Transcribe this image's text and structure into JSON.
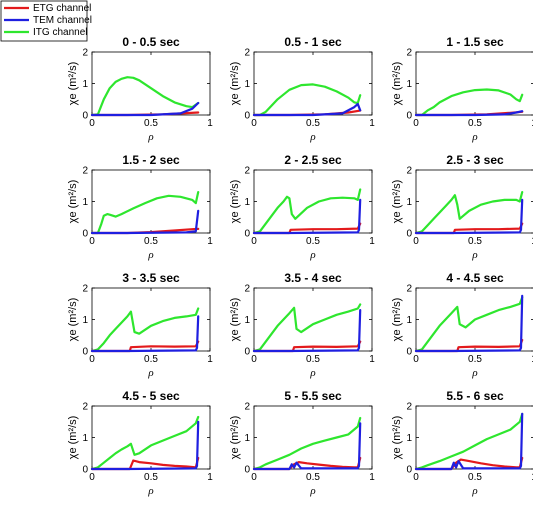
{
  "chart_data": {
    "type": "line",
    "layout": "4x3 subplot grid",
    "legend": {
      "placement": "top-left",
      "entries": [
        {
          "name": "ETG channel",
          "color": "#e31a1c"
        },
        {
          "name": "TEM channel",
          "color": "#1f1fe0"
        },
        {
          "name": "ITG channel",
          "color": "#2ee62e"
        }
      ]
    },
    "xlabel": "ρ",
    "ylabel": "χe (m²/s)",
    "xlim": [
      0,
      1
    ],
    "ylim": [
      0,
      2
    ],
    "xticks": [
      "0",
      "0.5",
      "1"
    ],
    "yticks": [
      "0",
      "1",
      "2"
    ],
    "panels": [
      {
        "title": "0 -  0.5 sec",
        "series": [
          {
            "name": "ETG channel",
            "x": [
              0,
              0.3,
              0.6,
              0.8,
              0.9
            ],
            "y": [
              0,
              0,
              0.02,
              0.06,
              0.08
            ]
          },
          {
            "name": "TEM channel",
            "x": [
              0,
              0.5,
              0.75,
              0.85,
              0.9
            ],
            "y": [
              0,
              0,
              0.05,
              0.2,
              0.38
            ]
          },
          {
            "name": "ITG channel",
            "x": [
              0,
              0.05,
              0.1,
              0.15,
              0.2,
              0.25,
              0.3,
              0.35,
              0.4,
              0.5,
              0.6,
              0.7,
              0.8,
              0.85,
              0.9
            ],
            "y": [
              0,
              0.02,
              0.5,
              0.85,
              1.05,
              1.15,
              1.2,
              1.18,
              1.1,
              0.85,
              0.6,
              0.4,
              0.28,
              0.25,
              0.38
            ]
          }
        ]
      },
      {
        "title": "0.5 -  1 sec",
        "series": [
          {
            "name": "ETG channel",
            "x": [
              0,
              0.3,
              0.6,
              0.8,
              0.9
            ],
            "y": [
              0,
              0,
              0.02,
              0.08,
              0.14
            ]
          },
          {
            "name": "TEM channel",
            "x": [
              0,
              0.5,
              0.75,
              0.85,
              0.88,
              0.9
            ],
            "y": [
              0,
              0,
              0.05,
              0.25,
              0.35,
              0.15
            ]
          },
          {
            "name": "ITG channel",
            "x": [
              0,
              0.05,
              0.1,
              0.15,
              0.2,
              0.3,
              0.4,
              0.5,
              0.6,
              0.7,
              0.8,
              0.85,
              0.88,
              0.9
            ],
            "y": [
              0,
              0,
              0.1,
              0.3,
              0.5,
              0.8,
              0.95,
              0.97,
              0.9,
              0.75,
              0.55,
              0.4,
              0.38,
              0.63
            ]
          }
        ]
      },
      {
        "title": "1 -  1.5 sec",
        "series": [
          {
            "name": "ETG channel",
            "x": [
              0,
              0.3,
              0.6,
              0.8,
              0.9
            ],
            "y": [
              0,
              0,
              0.02,
              0.07,
              0.1
            ]
          },
          {
            "name": "TEM channel",
            "x": [
              0,
              0.5,
              0.75,
              0.85,
              0.9
            ],
            "y": [
              0,
              0,
              0.02,
              0.08,
              0.12
            ]
          },
          {
            "name": "ITG channel",
            "x": [
              0,
              0.05,
              0.1,
              0.15,
              0.2,
              0.3,
              0.4,
              0.5,
              0.6,
              0.7,
              0.8,
              0.85,
              0.88,
              0.9
            ],
            "y": [
              0,
              0,
              0.15,
              0.25,
              0.4,
              0.6,
              0.72,
              0.79,
              0.81,
              0.78,
              0.65,
              0.5,
              0.44,
              0.64
            ]
          }
        ]
      },
      {
        "title": "1.5 -  2 sec",
        "series": [
          {
            "name": "ETG channel",
            "x": [
              0,
              0.3,
              0.5,
              0.7,
              0.85,
              0.9
            ],
            "y": [
              0,
              0,
              0.03,
              0.08,
              0.12,
              0.13
            ]
          },
          {
            "name": "TEM channel",
            "x": [
              0,
              0.3,
              0.8,
              0.88,
              0.9
            ],
            "y": [
              0,
              0,
              0.02,
              0.05,
              0.7
            ]
          },
          {
            "name": "ITG channel",
            "x": [
              0,
              0.05,
              0.08,
              0.1,
              0.13,
              0.15,
              0.2,
              0.25,
              0.35,
              0.45,
              0.55,
              0.65,
              0.75,
              0.85,
              0.88,
              0.9
            ],
            "y": [
              0,
              0,
              0.3,
              0.55,
              0.6,
              0.58,
              0.52,
              0.6,
              0.78,
              0.95,
              1.1,
              1.18,
              1.15,
              1.05,
              0.95,
              1.3
            ]
          }
        ]
      },
      {
        "title": "2 -  2.5 sec",
        "series": [
          {
            "name": "ETG channel",
            "x": [
              0,
              0.3,
              0.31,
              0.5,
              0.7,
              0.88,
              0.9
            ],
            "y": [
              0,
              0,
              0.1,
              0.12,
              0.12,
              0.14,
              0.3
            ]
          },
          {
            "name": "TEM channel",
            "x": [
              0,
              0.3,
              0.88,
              0.89,
              0.9
            ],
            "y": [
              0,
              0,
              0.02,
              0.1,
              1.05
            ]
          },
          {
            "name": "ITG channel",
            "x": [
              0,
              0.05,
              0.1,
              0.15,
              0.2,
              0.25,
              0.28,
              0.3,
              0.32,
              0.35,
              0.45,
              0.55,
              0.65,
              0.75,
              0.85,
              0.88,
              0.9
            ],
            "y": [
              0,
              0.05,
              0.3,
              0.55,
              0.8,
              1.0,
              1.15,
              1.1,
              0.6,
              0.45,
              0.8,
              1.0,
              1.1,
              1.12,
              1.1,
              1.05,
              1.38
            ]
          }
        ]
      },
      {
        "title": "2.5 -  3 sec",
        "series": [
          {
            "name": "ETG channel",
            "x": [
              0,
              0.32,
              0.33,
              0.5,
              0.7,
              0.88,
              0.9
            ],
            "y": [
              0,
              0,
              0.1,
              0.12,
              0.12,
              0.14,
              0.3
            ]
          },
          {
            "name": "TEM channel",
            "x": [
              0,
              0.3,
              0.88,
              0.89,
              0.9
            ],
            "y": [
              0,
              0,
              0.02,
              0.1,
              1.05
            ]
          },
          {
            "name": "ITG channel",
            "x": [
              0,
              0.05,
              0.1,
              0.15,
              0.2,
              0.25,
              0.3,
              0.33,
              0.35,
              0.37,
              0.45,
              0.55,
              0.65,
              0.75,
              0.85,
              0.88,
              0.9
            ],
            "y": [
              0,
              0.05,
              0.25,
              0.45,
              0.65,
              0.85,
              1.05,
              1.2,
              0.9,
              0.45,
              0.7,
              0.9,
              1.0,
              1.05,
              1.05,
              1.0,
              1.3
            ]
          }
        ]
      },
      {
        "title": "3 -  3.5 sec",
        "series": [
          {
            "name": "ETG channel",
            "x": [
              0,
              0.32,
              0.33,
              0.5,
              0.7,
              0.88,
              0.9
            ],
            "y": [
              0,
              0,
              0.12,
              0.15,
              0.14,
              0.15,
              0.3
            ]
          },
          {
            "name": "TEM channel",
            "x": [
              0,
              0.3,
              0.88,
              0.89,
              0.9
            ],
            "y": [
              0,
              0,
              0.02,
              0.1,
              1.1
            ]
          },
          {
            "name": "ITG channel",
            "x": [
              0,
              0.05,
              0.1,
              0.15,
              0.2,
              0.25,
              0.3,
              0.33,
              0.36,
              0.4,
              0.5,
              0.6,
              0.7,
              0.8,
              0.88,
              0.9
            ],
            "y": [
              0,
              0.05,
              0.25,
              0.5,
              0.7,
              0.9,
              1.1,
              1.25,
              0.6,
              0.55,
              0.8,
              0.95,
              1.05,
              1.1,
              1.15,
              1.35
            ]
          }
        ]
      },
      {
        "title": "3.5 -  4 sec",
        "series": [
          {
            "name": "ETG channel",
            "x": [
              0,
              0.33,
              0.34,
              0.5,
              0.7,
              0.88,
              0.9
            ],
            "y": [
              0,
              0,
              0.12,
              0.14,
              0.13,
              0.15,
              0.3
            ]
          },
          {
            "name": "TEM channel",
            "x": [
              0,
              0.3,
              0.88,
              0.89,
              0.9
            ],
            "y": [
              0,
              0,
              0.02,
              0.1,
              1.3
            ]
          },
          {
            "name": "ITG channel",
            "x": [
              0,
              0.05,
              0.1,
              0.15,
              0.2,
              0.25,
              0.3,
              0.34,
              0.36,
              0.4,
              0.5,
              0.6,
              0.7,
              0.8,
              0.88,
              0.9
            ],
            "y": [
              0,
              0.05,
              0.3,
              0.55,
              0.8,
              1.0,
              1.2,
              1.37,
              0.7,
              0.6,
              0.85,
              1.0,
              1.15,
              1.25,
              1.35,
              1.48
            ]
          }
        ]
      },
      {
        "title": "4 -  4.5 sec",
        "series": [
          {
            "name": "ETG channel",
            "x": [
              0,
              0.35,
              0.36,
              0.5,
              0.7,
              0.88,
              0.9
            ],
            "y": [
              0,
              0,
              0.12,
              0.14,
              0.13,
              0.15,
              0.35
            ]
          },
          {
            "name": "TEM channel",
            "x": [
              0,
              0.3,
              0.88,
              0.89,
              0.9
            ],
            "y": [
              0,
              0,
              0.02,
              0.1,
              1.75
            ]
          },
          {
            "name": "ITG channel",
            "x": [
              0,
              0.05,
              0.1,
              0.15,
              0.2,
              0.25,
              0.3,
              0.35,
              0.37,
              0.42,
              0.5,
              0.6,
              0.7,
              0.8,
              0.88,
              0.9
            ],
            "y": [
              0,
              0.05,
              0.3,
              0.55,
              0.8,
              1.0,
              1.2,
              1.4,
              0.85,
              0.75,
              1.0,
              1.15,
              1.3,
              1.4,
              1.5,
              1.7
            ]
          }
        ]
      },
      {
        "title": "4.5 -  5 sec",
        "series": [
          {
            "name": "ETG channel",
            "x": [
              0,
              0.32,
              0.35,
              0.4,
              0.5,
              0.6,
              0.7,
              0.8,
              0.88,
              0.9
            ],
            "y": [
              0,
              0,
              0.27,
              0.22,
              0.18,
              0.13,
              0.1,
              0.08,
              0.05,
              0.35
            ]
          },
          {
            "name": "TEM channel",
            "x": [
              0,
              0.3,
              0.88,
              0.89,
              0.9
            ],
            "y": [
              0,
              0,
              0.02,
              0.1,
              1.5
            ]
          },
          {
            "name": "ITG channel",
            "x": [
              0,
              0.05,
              0.1,
              0.15,
              0.2,
              0.25,
              0.3,
              0.33,
              0.36,
              0.4,
              0.5,
              0.6,
              0.7,
              0.8,
              0.88,
              0.9
            ],
            "y": [
              0,
              0.05,
              0.2,
              0.35,
              0.5,
              0.62,
              0.72,
              0.8,
              0.45,
              0.5,
              0.75,
              0.9,
              1.05,
              1.2,
              1.45,
              1.65
            ]
          }
        ]
      },
      {
        "title": "5 -  5.5 sec",
        "series": [
          {
            "name": "ETG channel",
            "x": [
              0,
              0.3,
              0.34,
              0.38,
              0.45,
              0.55,
              0.65,
              0.75,
              0.85,
              0.88,
              0.9
            ],
            "y": [
              0,
              0,
              0.15,
              0.22,
              0.18,
              0.14,
              0.1,
              0.07,
              0.05,
              0.05,
              0.35
            ]
          },
          {
            "name": "TEM channel",
            "x": [
              0,
              0.3,
              0.32,
              0.34,
              0.36,
              0.4,
              0.88,
              0.89,
              0.9
            ],
            "y": [
              0,
              0,
              0.15,
              0.05,
              0.2,
              0.02,
              0.02,
              0.1,
              1.45
            ]
          },
          {
            "name": "ITG channel",
            "x": [
              0,
              0.05,
              0.1,
              0.2,
              0.3,
              0.4,
              0.5,
              0.6,
              0.7,
              0.8,
              0.88,
              0.9
            ],
            "y": [
              0,
              0.05,
              0.15,
              0.3,
              0.45,
              0.65,
              0.8,
              0.9,
              1.0,
              1.1,
              1.35,
              1.62
            ]
          }
        ]
      },
      {
        "title": "5.5 -  6 sec",
        "series": [
          {
            "name": "ETG channel",
            "x": [
              0,
              0.3,
              0.34,
              0.38,
              0.45,
              0.55,
              0.65,
              0.75,
              0.85,
              0.88,
              0.9
            ],
            "y": [
              0,
              0,
              0.2,
              0.3,
              0.25,
              0.18,
              0.12,
              0.08,
              0.05,
              0.05,
              0.35
            ]
          },
          {
            "name": "TEM channel",
            "x": [
              0,
              0.3,
              0.32,
              0.34,
              0.36,
              0.4,
              0.88,
              0.89,
              0.9
            ],
            "y": [
              0,
              0,
              0.2,
              0.05,
              0.25,
              0.02,
              0.02,
              0.1,
              1.75
            ]
          },
          {
            "name": "ITG channel",
            "x": [
              0,
              0.05,
              0.1,
              0.2,
              0.3,
              0.4,
              0.5,
              0.6,
              0.7,
              0.8,
              0.88,
              0.9
            ],
            "y": [
              0,
              0.05,
              0.12,
              0.25,
              0.4,
              0.55,
              0.75,
              0.95,
              1.1,
              1.25,
              1.5,
              1.75
            ]
          }
        ]
      }
    ]
  }
}
